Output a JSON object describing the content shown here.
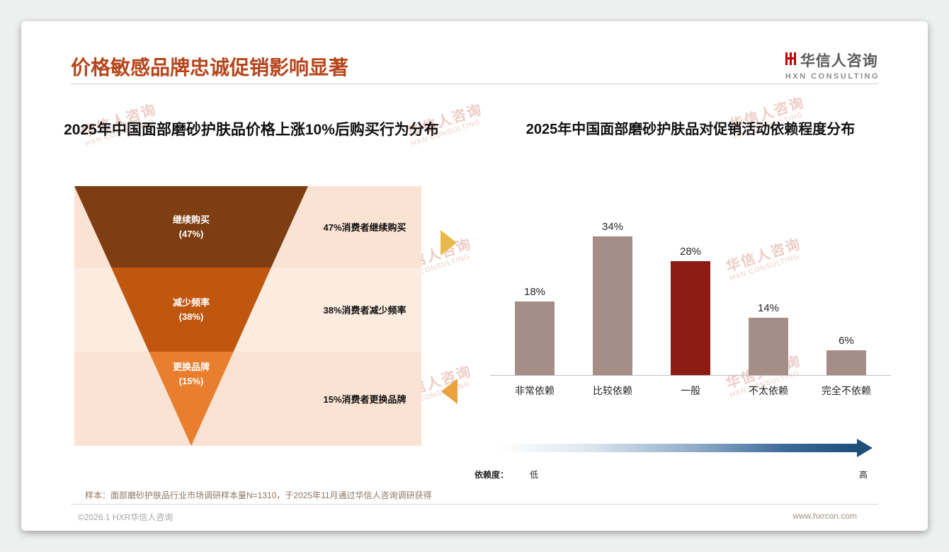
{
  "page": {
    "title": "价格敏感品牌忠诚促销影响显著",
    "sample_note": "样本：面部磨砂护肤品行业市场调研样本量N=1310，于2025年11月通过华信人咨询调研获得",
    "footer_left": "©2026.1 HXR华信人咨询",
    "footer_right": "www.hxrcon.com",
    "title_color": "#b5451b"
  },
  "logo": {
    "name": "华信人咨询",
    "subtitle": "HXN CONSULTING",
    "mark_color": "#c00000"
  },
  "watermark": {
    "line1": "华信人咨询",
    "line2": "HXN CONSULTING"
  },
  "chart_data": [
    {
      "type": "funnel",
      "title": "2025年中国面部磨砂护肤品价格上涨10%后购买行为分布",
      "panel_color": "#fbe5d6",
      "segments": [
        {
          "label": "继续购买",
          "pct": "(47%)",
          "value": 47,
          "side_label": "47%消费者继续购买",
          "color": "#7e3d12"
        },
        {
          "label": "减少频率",
          "pct": "(38%)",
          "value": 38,
          "side_label": "38%消费者减少频率",
          "color": "#c0570f"
        },
        {
          "label": "更换品牌",
          "pct": "(15%)",
          "value": 15,
          "side_label": "15%消费者更换品牌",
          "color": "#e97e2e"
        }
      ]
    },
    {
      "type": "bar",
      "title": "2025年中国面部磨砂护肤品对促销活动依赖程度分布",
      "categories": [
        "非常依赖",
        "比较依赖",
        "一般",
        "不太依赖",
        "完全不依赖"
      ],
      "values": [
        18,
        34,
        28,
        14,
        6
      ],
      "value_labels": [
        "18%",
        "34%",
        "28%",
        "14%",
        "6%"
      ],
      "highlight_index": 2,
      "bar_color": "#a58e87",
      "highlight_color": "#8c1c13",
      "ylim": [
        0,
        40
      ],
      "xlabel": "",
      "ylabel": "",
      "grid": false,
      "legend": "none",
      "dependency_axis": {
        "prefix": "依赖度：",
        "low": "低",
        "high": "高",
        "gradient_start": "#ffffff",
        "gradient_end": "#1f4e79"
      }
    }
  ]
}
